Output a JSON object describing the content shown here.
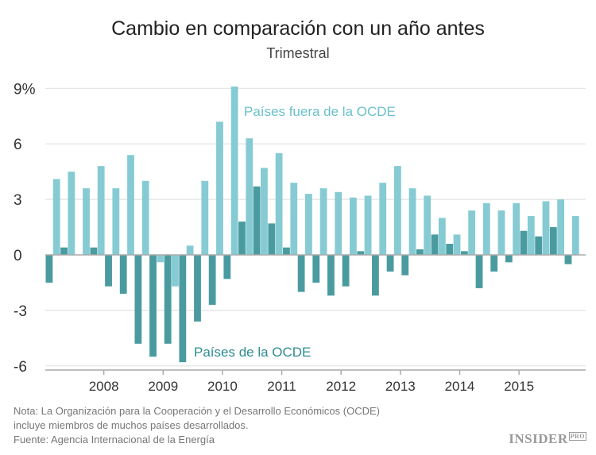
{
  "chart_data": {
    "type": "bar",
    "title": "Cambio en comparación con un año antes",
    "subtitle": "Trimestral",
    "ylim": [
      -6,
      9
    ],
    "yticks": [
      9,
      6,
      3,
      0,
      -3,
      -6
    ],
    "ytick_labels": [
      "9%",
      "6",
      "3",
      "0",
      "-3",
      "-6"
    ],
    "xtick_labels": [
      "2008",
      "2009",
      "2010",
      "2011",
      "2012",
      "2013",
      "2014",
      "2015"
    ],
    "grid": true,
    "series": [
      {
        "name": "Países de la OCDE",
        "color": "#4a9b9f",
        "label_color": "#2e8c90",
        "values": [
          -1.5,
          0.4,
          0.0,
          0.4,
          -1.7,
          -2.1,
          -4.8,
          -5.5,
          -4.8,
          -5.8,
          -3.6,
          -2.7,
          -1.3,
          1.8,
          3.7,
          1.7,
          0.4,
          -2.0,
          -1.5,
          -2.2,
          -1.7,
          0.2,
          -2.2,
          -0.9,
          -1.1,
          0.3,
          1.1,
          0.6,
          0.2,
          -1.8,
          -0.9,
          -0.4,
          1.3,
          1.0,
          1.5,
          -0.5
        ]
      },
      {
        "name": "Países fuera de la OCDE",
        "color": "#86cbd3",
        "label_color": "#6bc0cb",
        "values": [
          4.1,
          4.5,
          3.6,
          4.8,
          3.6,
          5.4,
          4.0,
          -0.4,
          -1.7,
          0.5,
          4.0,
          7.2,
          9.1,
          6.3,
          4.7,
          5.5,
          3.9,
          3.3,
          3.6,
          3.4,
          3.1,
          3.2,
          3.9,
          4.8,
          3.6,
          3.2,
          2.0,
          1.1,
          2.4,
          2.8,
          2.4,
          2.8,
          2.1,
          2.9,
          3.0,
          2.1
        ]
      }
    ]
  },
  "footer": {
    "note_line1": "Nota: La Organización para la Cooperación y el Desarrollo Económicos (OCDE)",
    "note_line2": "incluye miembros de muchos países desarrollados.",
    "source": "Fuente: Agencia Internacional de la Energía",
    "logo": "INSIDER",
    "logo_badge": "PRO"
  }
}
